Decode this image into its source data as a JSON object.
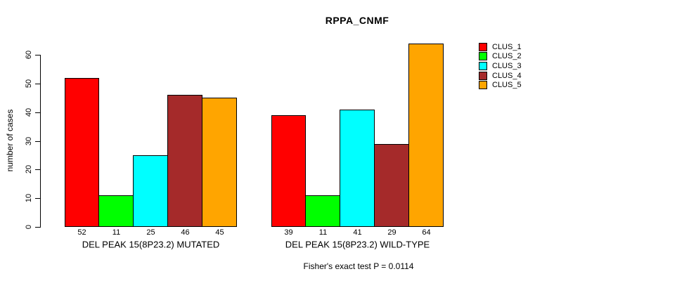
{
  "chart_data": {
    "type": "bar",
    "title": "RPPA_CNMF",
    "ylabel": "number of cases",
    "xlabel": "",
    "ylim": [
      0,
      60
    ],
    "yticks": [
      0,
      10,
      20,
      30,
      40,
      50,
      60
    ],
    "grid": false,
    "legend_position": "top-right",
    "bar_value_labels": true,
    "categories": [
      "DEL PEAK 15(8P23.2) MUTATED",
      "DEL PEAK 15(8P23.2) WILD-TYPE"
    ],
    "series": [
      {
        "name": "CLUS_1",
        "color": "#FF0000",
        "values": [
          52,
          39
        ]
      },
      {
        "name": "CLUS_2",
        "color": "#00FF00",
        "values": [
          11,
          11
        ]
      },
      {
        "name": "CLUS_3",
        "color": "#00FFFF",
        "values": [
          25,
          41
        ]
      },
      {
        "name": "CLUS_4",
        "color": "#A52A2A",
        "values": [
          46,
          29
        ]
      },
      {
        "name": "CLUS_5",
        "color": "#FFA500",
        "values": [
          45,
          64
        ]
      }
    ],
    "annotation": "Fisher's exact test P = 0.0114",
    "text_color": "#000000",
    "background_color": "#FFFFFF"
  }
}
